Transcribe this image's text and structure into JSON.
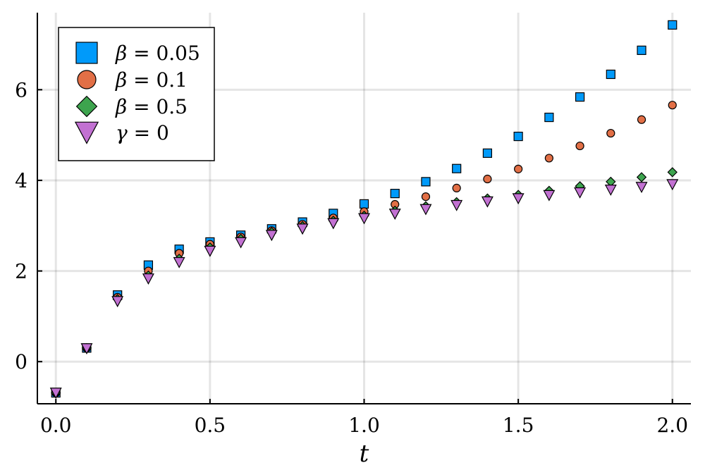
{
  "chart_data": {
    "type": "scatter",
    "title": "",
    "xlabel": "t",
    "ylabel": "",
    "xlim": [
      -0.06,
      2.06
    ],
    "ylim": [
      -0.93,
      7.7
    ],
    "xticks": [
      0.0,
      0.5,
      1.0,
      1.5,
      2.0
    ],
    "xtick_labels": [
      "0.0",
      "0.5",
      "1.0",
      "1.5",
      "2.0"
    ],
    "yticks": [
      0,
      2,
      4,
      6
    ],
    "ytick_labels": [
      "0",
      "2",
      "4",
      "6"
    ],
    "grid": true,
    "legend_position": "top-left",
    "x": [
      0.0,
      0.1,
      0.2,
      0.3,
      0.4,
      0.5,
      0.6,
      0.7,
      0.8,
      0.9,
      1.0,
      1.1,
      1.2,
      1.3,
      1.4,
      1.5,
      1.6,
      1.7,
      1.8,
      1.9,
      2.0
    ],
    "series": [
      {
        "name": "β = 0.05",
        "label_symbol": "β",
        "label_rest": " = 0.05",
        "marker": "square",
        "color": "#009AFA",
        "values": [
          -0.69,
          0.3,
          1.47,
          2.13,
          2.48,
          2.64,
          2.79,
          2.93,
          3.08,
          3.27,
          3.48,
          3.71,
          3.97,
          4.26,
          4.6,
          4.97,
          5.39,
          5.84,
          6.34,
          6.87,
          7.43
        ]
      },
      {
        "name": "β = 0.1",
        "label_symbol": "β",
        "label_rest": " = 0.1",
        "marker": "circle",
        "color": "#E26F46",
        "values": [
          -0.69,
          0.3,
          1.42,
          2.0,
          2.39,
          2.59,
          2.75,
          2.89,
          3.03,
          3.17,
          3.31,
          3.47,
          3.64,
          3.83,
          4.03,
          4.25,
          4.49,
          4.76,
          5.04,
          5.34,
          5.66
        ]
      },
      {
        "name": "β = 0.5",
        "label_symbol": "β",
        "label_rest": " = 0.5",
        "marker": "diamond",
        "color": "#3DA44E",
        "values": [
          -0.69,
          0.3,
          1.38,
          1.9,
          2.27,
          2.52,
          2.71,
          2.86,
          2.99,
          3.11,
          3.22,
          3.33,
          3.43,
          3.52,
          3.6,
          3.68,
          3.77,
          3.87,
          3.97,
          4.07,
          4.18
        ]
      },
      {
        "name": "γ = 0",
        "label_symbol": "γ",
        "label_rest": " = 0",
        "marker": "triangle-down",
        "color": "#C271D2",
        "values": [
          -0.69,
          0.29,
          1.33,
          1.83,
          2.19,
          2.44,
          2.63,
          2.79,
          2.93,
          3.05,
          3.16,
          3.26,
          3.36,
          3.45,
          3.53,
          3.6,
          3.67,
          3.73,
          3.79,
          3.85,
          3.91
        ]
      }
    ]
  }
}
